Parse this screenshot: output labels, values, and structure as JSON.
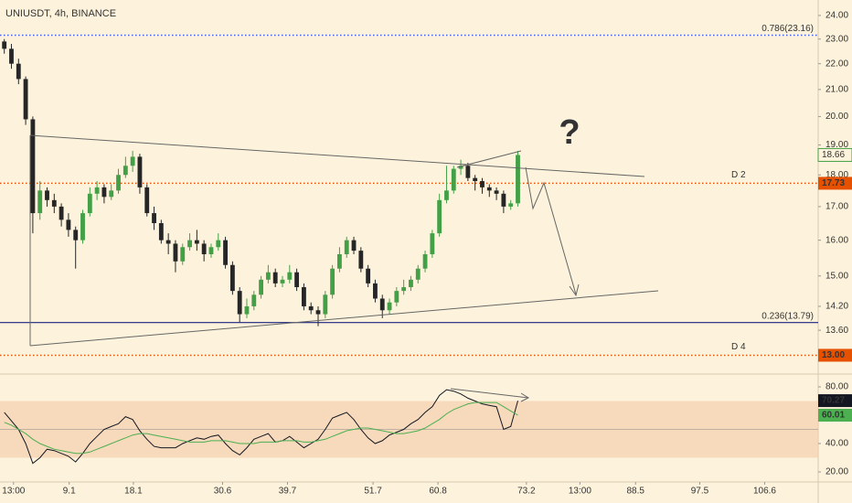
{
  "chart_data": [
    {
      "type": "candlestick",
      "title": "UNIUSDT, 4h, BINANCE",
      "log_scale": true,
      "up_color": "#43a047",
      "down_color": "#262626",
      "x": [
        0,
        1,
        2,
        3,
        4,
        5,
        6,
        7,
        8,
        9,
        10,
        11,
        12,
        13,
        14,
        15,
        16,
        17,
        18,
        19,
        20,
        21,
        22,
        23,
        24,
        25,
        26,
        27,
        28,
        29,
        30,
        31,
        32,
        33,
        34,
        35,
        36,
        37,
        38,
        39,
        40,
        41,
        42,
        43,
        44,
        45,
        46,
        47,
        48,
        49,
        50,
        51,
        52,
        53,
        54,
        55,
        56,
        57,
        58,
        59,
        60,
        61,
        62,
        63,
        64,
        65,
        66,
        67,
        68,
        69,
        70,
        71,
        72
      ],
      "open": [
        22.9,
        22.6,
        22.0,
        21.4,
        19.9,
        16.8,
        17.5,
        17.2,
        17.0,
        16.6,
        16.3,
        16.0,
        16.8,
        17.4,
        17.6,
        17.3,
        17.5,
        18.0,
        18.3,
        18.6,
        17.6,
        16.8,
        16.5,
        16.0,
        15.9,
        15.4,
        15.8,
        16.0,
        15.9,
        15.6,
        15.8,
        16.0,
        15.3,
        14.6,
        14.0,
        14.2,
        14.5,
        14.9,
        15.1,
        14.8,
        14.9,
        15.1,
        14.7,
        14.2,
        14.1,
        14.0,
        14.5,
        15.2,
        15.6,
        16.0,
        15.7,
        15.2,
        14.8,
        14.4,
        14.1,
        14.3,
        14.6,
        14.7,
        14.9,
        15.2,
        15.6,
        16.2,
        17.2,
        17.5,
        18.2,
        18.3,
        17.9,
        17.8,
        17.6,
        17.5,
        17.4,
        17.0,
        17.1
      ],
      "high": [
        23.0,
        22.8,
        22.2,
        21.5,
        20.0,
        17.8,
        17.6,
        17.4,
        17.1,
        16.8,
        16.4,
        16.9,
        17.6,
        17.8,
        17.7,
        17.7,
        18.2,
        18.6,
        18.8,
        18.7,
        17.7,
        17.0,
        16.6,
        16.2,
        16.0,
        15.9,
        16.2,
        16.3,
        16.0,
        15.9,
        16.2,
        16.1,
        15.4,
        14.7,
        14.4,
        14.6,
        15.0,
        15.3,
        15.2,
        15.0,
        15.3,
        15.2,
        14.8,
        14.3,
        14.2,
        14.6,
        15.3,
        15.8,
        16.1,
        16.1,
        15.8,
        15.3,
        14.9,
        14.5,
        14.4,
        14.7,
        14.9,
        15.0,
        15.3,
        15.7,
        16.3,
        17.4,
        18.3,
        18.3,
        18.5,
        18.4,
        18.0,
        17.9,
        17.7,
        17.6,
        17.5,
        17.2,
        18.8
      ],
      "low": [
        22.4,
        21.8,
        21.2,
        19.7,
        16.2,
        16.6,
        17.0,
        16.8,
        16.4,
        16.1,
        15.2,
        15.9,
        16.7,
        17.2,
        17.1,
        17.2,
        17.4,
        17.9,
        18.1,
        17.4,
        16.7,
        16.3,
        15.9,
        15.6,
        15.1,
        15.3,
        15.7,
        15.7,
        15.4,
        15.5,
        15.7,
        15.2,
        14.5,
        13.8,
        13.9,
        14.1,
        14.4,
        14.8,
        14.7,
        14.7,
        14.8,
        14.6,
        14.1,
        14.0,
        13.7,
        13.9,
        14.4,
        15.1,
        15.5,
        15.6,
        15.1,
        14.7,
        14.3,
        13.9,
        14.0,
        14.2,
        14.5,
        14.6,
        14.8,
        15.1,
        15.5,
        16.1,
        17.1,
        17.4,
        18.0,
        17.8,
        17.5,
        17.4,
        17.3,
        17.2,
        16.8,
        16.9,
        17.0
      ],
      "close": [
        22.6,
        22.0,
        21.4,
        19.9,
        16.8,
        17.5,
        17.2,
        17.0,
        16.6,
        16.3,
        16.0,
        16.8,
        17.4,
        17.6,
        17.3,
        17.5,
        18.0,
        18.3,
        18.6,
        17.6,
        16.8,
        16.5,
        16.0,
        15.9,
        15.4,
        15.8,
        16.0,
        15.9,
        15.6,
        15.8,
        16.0,
        15.3,
        14.6,
        14.0,
        14.2,
        14.5,
        14.9,
        15.1,
        14.8,
        14.9,
        15.1,
        14.7,
        14.2,
        14.1,
        14.0,
        14.5,
        15.2,
        15.6,
        16.0,
        15.7,
        15.2,
        14.8,
        14.4,
        14.1,
        14.3,
        14.6,
        14.7,
        14.9,
        15.2,
        15.6,
        16.2,
        17.2,
        17.5,
        18.2,
        18.3,
        17.9,
        17.8,
        17.6,
        17.5,
        17.4,
        17.0,
        17.1,
        18.66
      ],
      "xlim": [
        -0.6,
        114.1
      ],
      "xticks": [
        {
          "value": 1.3,
          "label": "13:00"
        },
        9.1,
        18.1,
        30.6,
        39.7,
        51.7,
        60.8,
        73.2,
        {
          "value": 80.7,
          "label": "13:00"
        },
        88.5,
        97.5,
        106.6
      ],
      "ylim": [
        12.65,
        24.68
      ],
      "yticks": [
        {
          "value": 24,
          "label": "24.00"
        },
        {
          "value": 23,
          "label": "23.00"
        },
        {
          "value": 22,
          "label": "22.00"
        },
        {
          "value": 21,
          "label": "21.00"
        },
        {
          "value": 20,
          "label": "20.00"
        },
        {
          "value": 19,
          "label": "19.00"
        },
        {
          "value": 18,
          "label": "18.00"
        },
        {
          "value": 17,
          "label": "17.00"
        },
        {
          "value": 16,
          "label": "16.00"
        },
        {
          "value": 15,
          "label": "15.00"
        },
        {
          "value": 14.2,
          "label": "14.20"
        },
        {
          "value": 13.6,
          "label": "13.60"
        }
      ],
      "levels": [
        {
          "label": "0.786(23.16)",
          "value": 23.16,
          "color": "#3d5afe",
          "style": "dotted"
        },
        {
          "label": "D 2",
          "value": 17.73,
          "color": "#e65100",
          "style": "dotted",
          "tag": true
        },
        {
          "label": "0.236(13.79)",
          "value": 13.79,
          "color": "#1a237e",
          "style": "solid"
        },
        {
          "label": "D 4",
          "value": 13.0,
          "value_label": "13.00",
          "color": "#e65100",
          "style": "dotted",
          "tag": true
        }
      ],
      "annotations": [
        "?"
      ]
    },
    {
      "type": "line",
      "series": [
        {
          "color": "#131722",
          "values": [
            62,
            56,
            50,
            40,
            26,
            30,
            36,
            35,
            33,
            31,
            27,
            33,
            40,
            45,
            50,
            52,
            54,
            59,
            57,
            49,
            43,
            38,
            37,
            37,
            37,
            40,
            42,
            44,
            43,
            45,
            46,
            40,
            35,
            32,
            37,
            43,
            45,
            47,
            41,
            42,
            45,
            41,
            37,
            40,
            43,
            50,
            58,
            60,
            62,
            57,
            50,
            44,
            40,
            42,
            46,
            48,
            50,
            54,
            57,
            62,
            66,
            74,
            78,
            77,
            75,
            72,
            70,
            68,
            67,
            66,
            50,
            52,
            70.27
          ]
        },
        {
          "color": "#4caf50",
          "values": [
            55,
            53,
            50,
            47,
            43,
            40,
            38,
            36,
            35,
            34,
            33,
            33,
            34,
            36,
            38,
            40,
            42,
            44,
            46,
            47,
            47,
            46,
            45,
            44,
            43,
            42,
            41,
            41,
            41,
            42,
            42,
            42,
            41,
            40,
            40,
            40,
            41,
            41,
            41,
            42,
            42,
            42,
            41,
            41,
            42,
            43,
            45,
            47,
            49,
            50,
            51,
            51,
            50,
            49,
            48,
            47,
            47,
            48,
            49,
            51,
            54,
            57,
            61,
            64,
            66,
            68,
            69,
            69,
            69,
            69,
            66,
            63,
            60.01
          ]
        }
      ],
      "ylim": [
        12.9,
        87.1
      ],
      "yticks": [
        {
          "value": 80,
          "label": "80.00"
        },
        {
          "value": 40,
          "label": "40.00"
        },
        {
          "value": 20,
          "label": "20.00"
        }
      ],
      "band": [
        30,
        70
      ],
      "band_color": "#f3cfae",
      "midline": 50
    }
  ]
}
